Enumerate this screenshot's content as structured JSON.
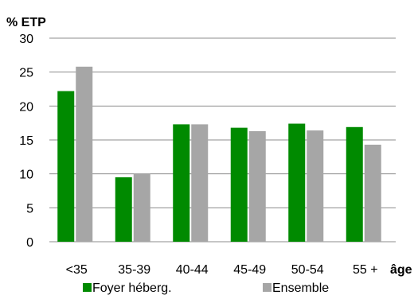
{
  "chart_data": {
    "type": "bar",
    "title": "",
    "ylabel": "% ETP",
    "xlabel": "âge",
    "ylim": [
      0,
      30
    ],
    "yticks": [
      0,
      5,
      10,
      15,
      20,
      25,
      30
    ],
    "grid": "horizontal",
    "legend_position": "bottom",
    "categories": [
      "<35",
      "35-39",
      "40-44",
      "45-49",
      "50-54",
      "55 +"
    ],
    "series": [
      {
        "name": "Foyer héberg.",
        "color": "#008a00",
        "values": [
          22.2,
          9.5,
          17.3,
          16.8,
          17.4,
          16.9
        ]
      },
      {
        "name": "Ensemble",
        "color": "#a6a6a6",
        "values": [
          25.8,
          10.0,
          17.3,
          16.3,
          16.4,
          14.3
        ]
      }
    ]
  }
}
